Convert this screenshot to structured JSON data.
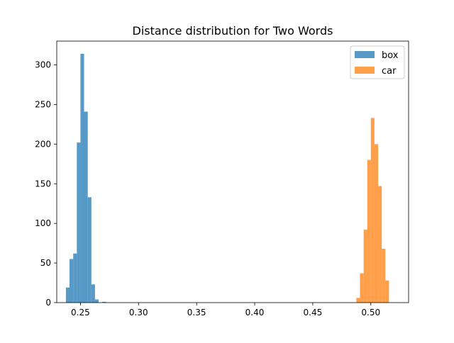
{
  "chart_data": {
    "type": "histogram",
    "title": "Distance distribution for Two Words",
    "xlabel": "",
    "ylabel": "",
    "xlim": [
      0.2296,
      0.3296
    ],
    "ylim": [
      0,
      330
    ],
    "xticks": [
      {
        "value": 0.25,
        "label": "0.25"
      },
      {
        "value": 0.3,
        "label": "0.30"
      },
      {
        "value": 0.35,
        "label": "0.35"
      },
      {
        "value": 0.4,
        "label": "0.40"
      },
      {
        "value": 0.45,
        "label": "0.45"
      },
      {
        "value": 0.5,
        "label": "0.50"
      }
    ],
    "yticks": [
      0,
      50,
      100,
      150,
      200,
      250,
      300
    ],
    "grid": false,
    "legend_position": "top-right",
    "series": [
      {
        "name": "box",
        "color": "#1f77b4",
        "opacity": 0.75,
        "bin_edges": [
          0.2375,
          0.2406,
          0.2438,
          0.2469,
          0.25,
          0.2531,
          0.2563,
          0.2594,
          0.2625,
          0.2656,
          0.2688,
          0.2719
        ],
        "counts": [
          19,
          55,
          62,
          202,
          314,
          241,
          133,
          23,
          4,
          0,
          1
        ]
      },
      {
        "name": "car",
        "color": "#ff7f0e",
        "opacity": 0.75,
        "bin_edges": [
          0.4875,
          0.4906,
          0.4938,
          0.4969,
          0.5,
          0.5031,
          0.5063,
          0.5094,
          0.5125,
          0.5156
        ],
        "counts": [
          6,
          37,
          92,
          180,
          233,
          200,
          147,
          68,
          28
        ]
      }
    ]
  }
}
